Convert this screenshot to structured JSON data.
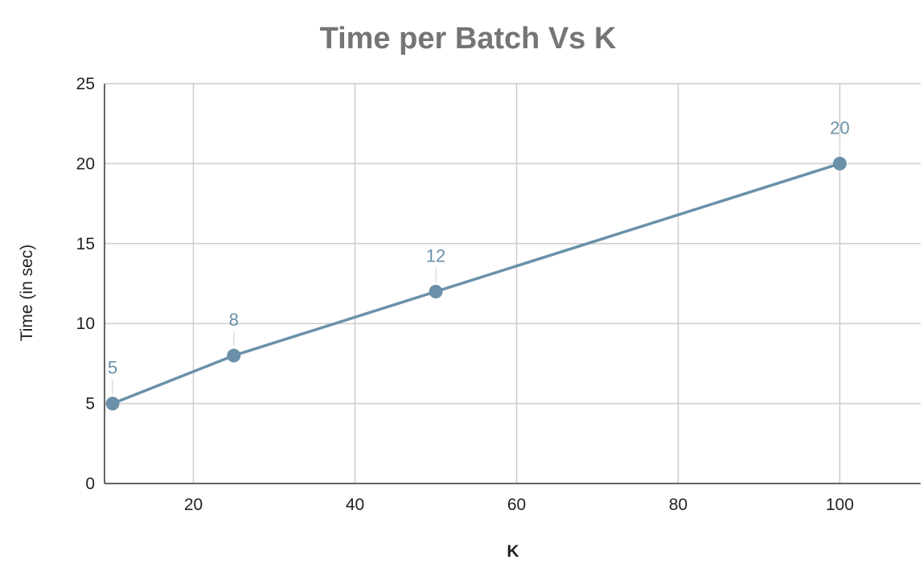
{
  "chart_data": {
    "type": "line",
    "title": "Time per Batch Vs K",
    "xlabel": "K",
    "ylabel": "Time (in sec)",
    "xlim": [
      9,
      110
    ],
    "ylim": [
      0,
      25
    ],
    "xticks": [
      20,
      40,
      60,
      80,
      100
    ],
    "yticks": [
      0,
      5,
      10,
      15,
      20,
      25
    ],
    "grid": true,
    "legend": "none",
    "series": [
      {
        "x": [
          10,
          25,
          50,
          100
        ],
        "values": [
          5,
          8,
          12,
          20
        ],
        "data_labels": [
          "5",
          "8",
          "12",
          "20"
        ],
        "color": "#6a91a9"
      }
    ]
  }
}
